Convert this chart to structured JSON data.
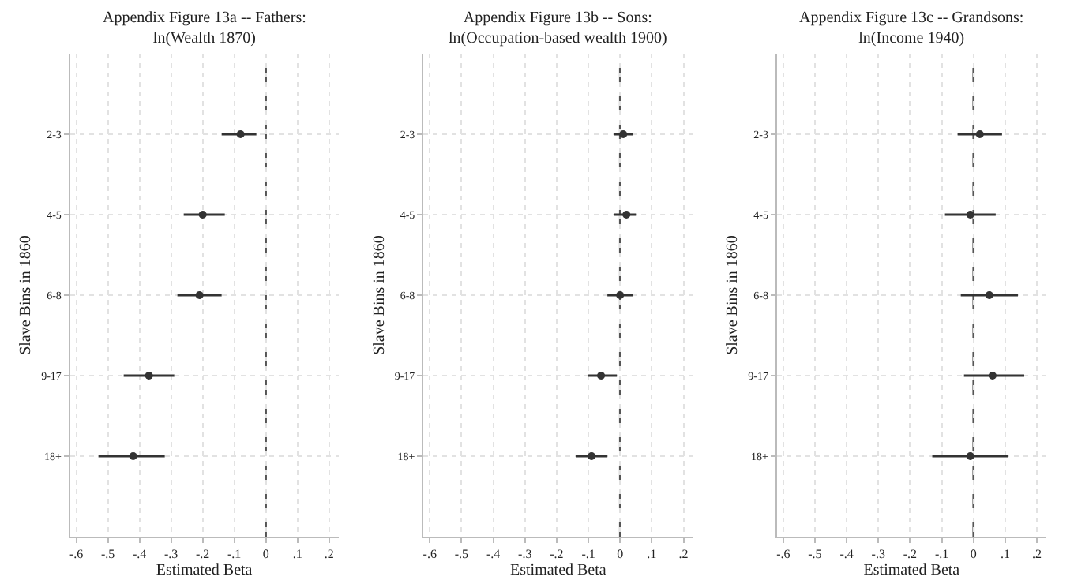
{
  "chart_data": [
    {
      "type": "scatter",
      "orientation": "horizontal",
      "title": "Appendix Figure 13a -- Fathers:\nln(Wealth 1870)",
      "xlabel": "Estimated Beta",
      "ylabel": "Slave Bins in 1860",
      "categories": [
        "2-3",
        "4-5",
        "6-8",
        "9-17",
        "18+"
      ],
      "values": [
        -0.08,
        -0.2,
        -0.21,
        -0.37,
        -0.42
      ],
      "errors": [
        [
          -0.14,
          -0.03
        ],
        [
          -0.26,
          -0.13
        ],
        [
          -0.28,
          -0.14
        ],
        [
          -0.45,
          -0.29
        ],
        [
          -0.53,
          -0.32
        ]
      ],
      "color": "#333333",
      "marker": "circle",
      "xlim": [
        -0.62,
        0.23
      ],
      "xticks": [
        {
          "value": -0.6,
          "label": "-.6"
        },
        {
          "value": -0.5,
          "label": "-.5"
        },
        {
          "value": -0.4,
          "label": "-.4"
        },
        {
          "value": -0.3,
          "label": "-.3"
        },
        {
          "value": -0.2,
          "label": "-.2"
        },
        {
          "value": -0.1,
          "label": "-.1"
        },
        0,
        {
          "value": 0.1,
          "label": ".1"
        },
        {
          "value": 0.2,
          "label": ".2"
        }
      ],
      "grid": true,
      "ref_lines": [
        {
          "axis": "x",
          "value": 0,
          "color": "#555555",
          "line_style": "dashed"
        }
      ]
    },
    {
      "type": "scatter",
      "orientation": "horizontal",
      "title": "Appendix Figure 13b -- Sons:\nln(Occupation-based wealth 1900)",
      "xlabel": "Estimated Beta",
      "ylabel": "Slave Bins in 1860",
      "categories": [
        "2-3",
        "4-5",
        "6-8",
        "9-17",
        "18+"
      ],
      "values": [
        0.01,
        0.02,
        0.0,
        -0.06,
        -0.09
      ],
      "errors": [
        [
          -0.02,
          0.04
        ],
        [
          -0.02,
          0.05
        ],
        [
          -0.04,
          0.04
        ],
        [
          -0.1,
          -0.01
        ],
        [
          -0.14,
          -0.04
        ]
      ],
      "color": "#333333",
      "marker": "circle",
      "xlim": [
        -0.62,
        0.23
      ],
      "xticks": [
        {
          "value": -0.6,
          "label": "-.6"
        },
        {
          "value": -0.5,
          "label": "-.5"
        },
        {
          "value": -0.4,
          "label": "-.4"
        },
        {
          "value": -0.3,
          "label": "-.3"
        },
        {
          "value": -0.2,
          "label": "-.2"
        },
        {
          "value": -0.1,
          "label": "-.1"
        },
        0,
        {
          "value": 0.1,
          "label": ".1"
        },
        {
          "value": 0.2,
          "label": ".2"
        }
      ],
      "grid": true,
      "ref_lines": [
        {
          "axis": "x",
          "value": 0,
          "color": "#555555",
          "line_style": "dashed"
        }
      ]
    },
    {
      "type": "scatter",
      "orientation": "horizontal",
      "title": "Appendix Figure 13c -- Grandsons:\nln(Income 1940)",
      "xlabel": "Estimated Beta",
      "ylabel": "Slave Bins in 1860",
      "categories": [
        "2-3",
        "4-5",
        "6-8",
        "9-17",
        "18+"
      ],
      "values": [
        0.02,
        -0.01,
        0.05,
        0.06,
        -0.01
      ],
      "errors": [
        [
          -0.05,
          0.09
        ],
        [
          -0.09,
          0.07
        ],
        [
          -0.04,
          0.14
        ],
        [
          -0.03,
          0.16
        ],
        [
          -0.13,
          0.11
        ]
      ],
      "color": "#333333",
      "marker": "circle",
      "xlim": [
        -0.62,
        0.23
      ],
      "xticks": [
        {
          "value": -0.6,
          "label": "-.6"
        },
        {
          "value": -0.5,
          "label": "-.5"
        },
        {
          "value": -0.4,
          "label": "-.4"
        },
        {
          "value": -0.3,
          "label": "-.3"
        },
        {
          "value": -0.2,
          "label": "-.2"
        },
        {
          "value": -0.1,
          "label": "-.1"
        },
        0,
        {
          "value": 0.1,
          "label": ".1"
        },
        {
          "value": 0.2,
          "label": ".2"
        }
      ],
      "grid": true,
      "ref_lines": [
        {
          "axis": "x",
          "value": 0,
          "color": "#555555",
          "line_style": "dashed"
        }
      ]
    }
  ]
}
